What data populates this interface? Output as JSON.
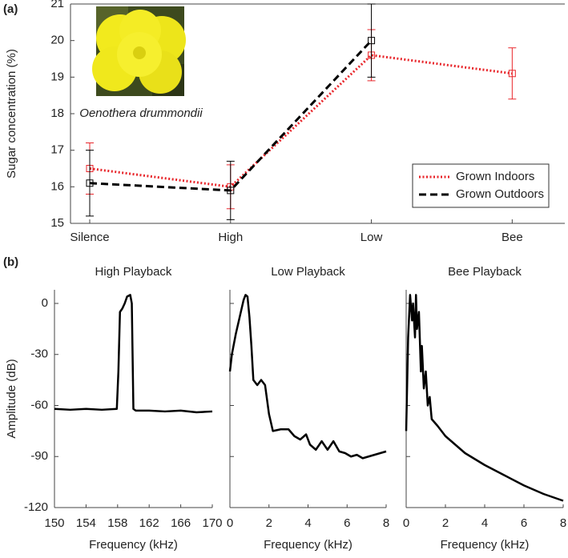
{
  "chart_data": [
    {
      "type": "line",
      "panel_label": "(a)",
      "annotation": "Oenothera drummondii",
      "ylabel": "Sugar concentration (%)",
      "categories": [
        "Silence",
        "High",
        "Low",
        "Bee"
      ],
      "ylim": [
        15,
        21
      ],
      "yticks": [
        15,
        16,
        17,
        18,
        19,
        20,
        21
      ],
      "legend": "lower right",
      "series": [
        {
          "name": "Grown Indoors",
          "color": "#e8262b",
          "dash": "dotted",
          "values": [
            16.5,
            16.0,
            19.6,
            19.1
          ],
          "errors": [
            0.7,
            0.6,
            0.7,
            0.7
          ]
        },
        {
          "name": "Grown Outdoors",
          "color": "#000000",
          "dash": "dashed",
          "values": [
            16.1,
            15.9,
            20.0,
            null
          ],
          "errors": [
            0.9,
            0.8,
            1.0,
            null
          ]
        }
      ]
    },
    {
      "type": "line",
      "panel_label": "(b)",
      "title": "High Playback",
      "xlabel": "Frequency (kHz)",
      "ylabel": "Amplitude (dB)",
      "xlim": [
        150,
        170
      ],
      "xticks": [
        150,
        154,
        158,
        162,
        166,
        170
      ],
      "ylim": [
        -120,
        8
      ],
      "yticks": [
        0,
        -30,
        -60,
        -90,
        -120
      ],
      "ytick_labels": true,
      "series": [
        {
          "color": "#000000",
          "x": [
            150,
            152,
            154,
            156,
            157.9,
            158.1,
            158.3,
            158.6,
            158.9,
            159.2,
            159.6,
            159.8,
            160,
            160.3,
            162,
            164,
            166,
            168,
            170
          ],
          "values": [
            -62,
            -62.5,
            -62,
            -62.5,
            -62,
            -40,
            -5,
            -3,
            0,
            4,
            5,
            0,
            -62,
            -63,
            -63,
            -63.5,
            -63,
            -64,
            -63.5
          ]
        }
      ]
    },
    {
      "type": "line",
      "title": "Low Playback",
      "xlabel": "Frequency (kHz)",
      "xlim": [
        0,
        8
      ],
      "xticks": [
        0,
        2,
        4,
        6,
        8
      ],
      "ylim": [
        -120,
        8
      ],
      "yticks": [
        0,
        -30,
        -60,
        -90,
        -120
      ],
      "ytick_labels": false,
      "series": [
        {
          "color": "#000000",
          "x": [
            0,
            0.1,
            0.3,
            0.5,
            0.7,
            0.8,
            0.9,
            1.0,
            1.1,
            1.2,
            1.4,
            1.6,
            1.8,
            2.0,
            2.2,
            2.6,
            3.0,
            3.3,
            3.6,
            3.9,
            4.1,
            4.4,
            4.7,
            5.0,
            5.3,
            5.6,
            5.9,
            6.2,
            6.5,
            6.8,
            7.1,
            7.4,
            7.7,
            8
          ],
          "values": [
            -40,
            -30,
            -18,
            -8,
            2,
            5,
            4,
            -8,
            -25,
            -45,
            -48,
            -45,
            -48,
            -65,
            -75,
            -74,
            -74,
            -78,
            -80,
            -77,
            -83,
            -86,
            -81,
            -86,
            -81,
            -87,
            -88,
            -90,
            -89,
            -91,
            -90,
            -89,
            -88,
            -87
          ]
        }
      ]
    },
    {
      "type": "line",
      "title": "Bee Playback",
      "xlabel": "Frequency (kHz)",
      "xlim": [
        0,
        8
      ],
      "xticks": [
        0,
        2,
        4,
        6,
        8
      ],
      "ylim": [
        -120,
        8
      ],
      "yticks": [
        0,
        -30,
        -60,
        -90,
        -120
      ],
      "ytick_labels": false,
      "series": [
        {
          "color": "#000000",
          "x": [
            0,
            0.1,
            0.2,
            0.3,
            0.35,
            0.45,
            0.5,
            0.55,
            0.65,
            0.75,
            0.8,
            0.9,
            1.0,
            1.1,
            1.2,
            1.3,
            1.6,
            2,
            3,
            4,
            5,
            6,
            7,
            8
          ],
          "values": [
            -75,
            -20,
            5,
            -10,
            0,
            -20,
            5,
            -15,
            -5,
            -40,
            -25,
            -50,
            -40,
            -60,
            -55,
            -68,
            -72,
            -78,
            -88,
            -95,
            -101,
            -107,
            -112,
            -116
          ]
        }
      ]
    }
  ]
}
